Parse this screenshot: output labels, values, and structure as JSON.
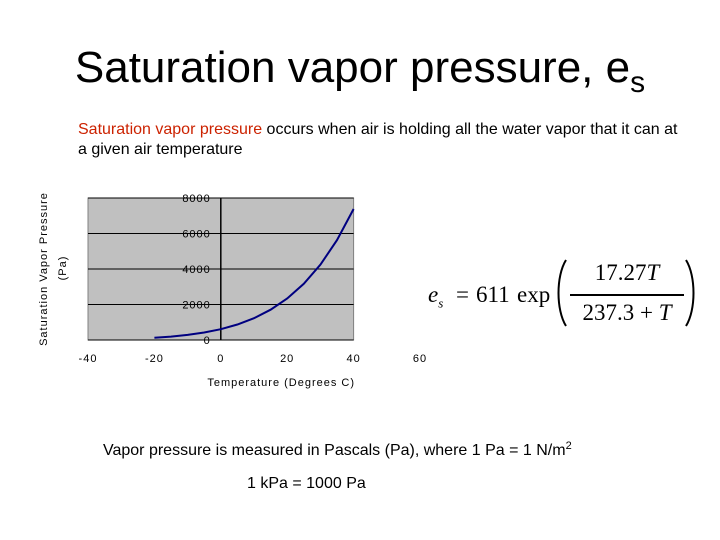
{
  "slide": {
    "title": "Saturation vapor pressure, e",
    "title_subscript": "s",
    "intro_highlight": "Saturation vapor pressure",
    "intro_rest": " occurs when air is holding all the water vapor that it can at a given air temperature",
    "note_main": "Vapor pressure is measured in Pascals (Pa), where 1 Pa = 1 N/m",
    "note_superscript": "2",
    "note_kpa": "1 kPa = 1000 Pa",
    "highlight_color": "#cc2200"
  },
  "formula": {
    "lhs_symbol": "e",
    "lhs_subscript": "s",
    "equals": "=",
    "coefficient": "611",
    "function": "exp",
    "numerator_coefficient": "17.27",
    "numerator_variable": "T",
    "denominator_constant": "237.3 + ",
    "denominator_variable": "T"
  },
  "chart_data": {
    "type": "line",
    "title": "",
    "xlabel": "Temperature (Degrees C)",
    "ylabel": "Saturation Vapor Pressure (Pa)",
    "xlim": [
      -40,
      60
    ],
    "ylim": [
      0,
      8000
    ],
    "plot_area_xlim": [
      -40,
      40
    ],
    "x_ticks": [
      "-40",
      "-20",
      "0",
      "20",
      "40",
      "60"
    ],
    "y_ticks": [
      "0",
      "2000",
      "4000",
      "6000",
      "8000"
    ],
    "grid": true,
    "legend": "none",
    "plot_background": "#c0c0c0",
    "line_color": "#000080",
    "series": [
      {
        "x": [
          -20,
          -15,
          -10,
          -5,
          0,
          5,
          10,
          15,
          20,
          25,
          30,
          35,
          40
        ],
        "values": [
          126,
          193,
          287,
          422,
          611,
          872,
          1228,
          1705,
          2338,
          3167,
          4243,
          5626,
          7383
        ]
      }
    ]
  }
}
